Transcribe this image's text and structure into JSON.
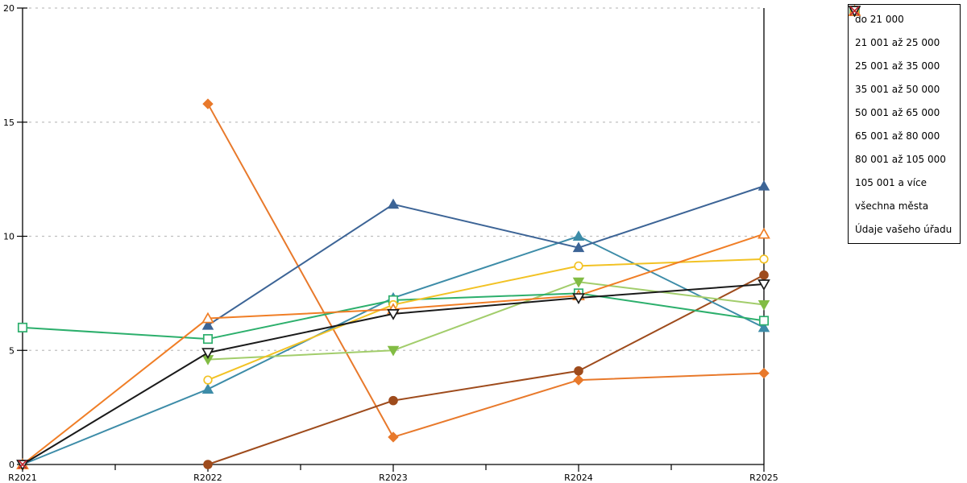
{
  "chart_data": {
    "type": "line",
    "title": "",
    "xlabel": "",
    "ylabel": "",
    "categories": [
      "R2021",
      "R2022",
      "R2023",
      "R2024",
      "R2025"
    ],
    "ylim": [
      0,
      20
    ],
    "yticks": [
      0,
      5,
      10,
      15,
      20
    ],
    "grid": "horizontal dotted gridlines at 5,10,15,20",
    "x_minor_ticks": true,
    "legend_position": "right, black-bordered box",
    "series": [
      {
        "name": "do 21 000",
        "marker": "diamond",
        "fill": "solid",
        "color": "#E8792B",
        "values": [
          null,
          15.8,
          1.2,
          3.7,
          4.0
        ]
      },
      {
        "name": "21 001 až 25 000",
        "marker": "circle",
        "fill": "solid",
        "color": "#9E4B1C",
        "values": [
          null,
          0.0,
          2.8,
          4.1,
          8.3
        ]
      },
      {
        "name": "25 001 až 35 000",
        "marker": "triangle-up",
        "fill": "solid",
        "color": "#3D8CA8",
        "values": [
          0.0,
          3.3,
          7.3,
          10.0,
          6.0
        ]
      },
      {
        "name": "35 001 až 50 000",
        "marker": "triangle-up",
        "fill": "solid",
        "color": "#3C6496",
        "values": [
          null,
          6.1,
          11.4,
          9.5,
          12.2
        ]
      },
      {
        "name": "50 001 až 65 000",
        "marker": "triangle-down",
        "fill": "solid",
        "color": "#82BC44",
        "line_color": "#A2CD6B",
        "values": [
          null,
          4.6,
          5.0,
          8.0,
          7.0
        ]
      },
      {
        "name": "65 001 až 80 000",
        "marker": "square",
        "fill": "open",
        "color": "#2CAF6C",
        "values": [
          6.0,
          5.5,
          7.2,
          7.5,
          6.3
        ]
      },
      {
        "name": "80 001 až 105 000",
        "marker": "circle",
        "fill": "open",
        "color": "#F2C224",
        "values": [
          null,
          3.7,
          7.0,
          8.7,
          9.0
        ]
      },
      {
        "name": "105 001 a více",
        "marker": "triangle-up",
        "fill": "open",
        "color": "#F07E26",
        "values": [
          0.0,
          6.4,
          6.8,
          7.4,
          10.1
        ]
      },
      {
        "name": "všechna města",
        "marker": "triangle-down",
        "fill": "open",
        "color": "#1A1A1A",
        "values": [
          0.0,
          4.9,
          6.6,
          7.3,
          7.9
        ]
      },
      {
        "name": "Údaje vašeho úřadu",
        "marker": "x",
        "fill": "open",
        "color": "#C2282E",
        "values": [
          0.0,
          null,
          null,
          null,
          null
        ]
      }
    ],
    "colors": {
      "axis": "#000000",
      "gridline": "#c0c0c0",
      "background": "#ffffff"
    }
  }
}
